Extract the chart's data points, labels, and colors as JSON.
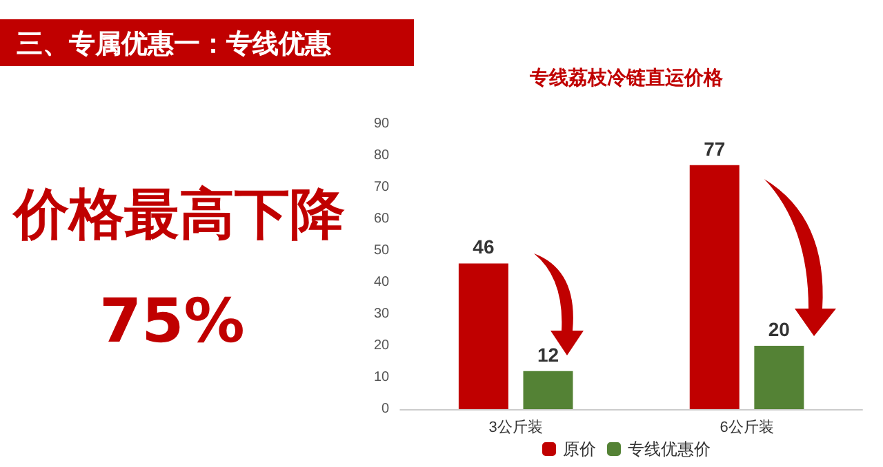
{
  "chart_data": {
    "type": "bar",
    "title": "专线荔枝冷链直运价格",
    "annotations": [
      "三、专属优惠一：专线优惠",
      "价格最高下降",
      "75%"
    ],
    "categories": [
      "3公斤装",
      "6公斤装"
    ],
    "series": [
      {
        "name": "原价",
        "color": "#c00000",
        "values": [
          46,
          77
        ]
      },
      {
        "name": "专线优惠价",
        "color": "#548235",
        "values": [
          12,
          20
        ]
      }
    ],
    "ylim": [
      0,
      90
    ],
    "yticks": [
      0,
      10,
      20,
      30,
      40,
      50,
      60,
      70,
      80,
      90
    ],
    "data_labels": true,
    "grid": false,
    "legend": "bottom"
  }
}
